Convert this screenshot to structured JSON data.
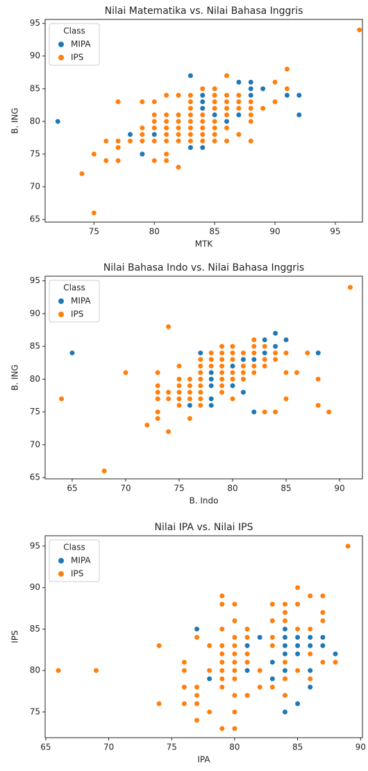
{
  "chart_data": [
    {
      "type": "scatter",
      "title": "Nilai Matematika vs. Nilai Bahasa Inggris",
      "x_label": "MTK",
      "y_label": "B. ING",
      "legend_title": "Class",
      "legend": "upper left",
      "grid": false,
      "xlim": [
        70.95,
        97.25
      ],
      "ylim": [
        64.6,
        95.6
      ],
      "xticks": [
        75,
        80,
        85,
        90,
        95
      ],
      "yticks": [
        65,
        70,
        75,
        80,
        85,
        90,
        95
      ],
      "series": [
        {
          "name": "MIPA",
          "color": "#1f77b4",
          "x": [
            72,
            78,
            79,
            80,
            83,
            83,
            84,
            84,
            84,
            85,
            86,
            87,
            87,
            88,
            88,
            88,
            89,
            91,
            92,
            92,
            84
          ],
          "values": [
            80,
            78,
            75,
            78,
            87,
            76,
            76,
            83,
            84,
            81,
            80,
            86,
            81,
            86,
            85,
            84,
            85,
            84,
            84,
            81,
            82
          ]
        },
        {
          "name": "IPS",
          "color": "#ff7f0e",
          "x": [
            74,
            75,
            75,
            76,
            76,
            77,
            77,
            77,
            77,
            78,
            79,
            79,
            79,
            79,
            80,
            80,
            80,
            80,
            80,
            80,
            81,
            81,
            81,
            81,
            81,
            81,
            81,
            81,
            82,
            82,
            82,
            82,
            82,
            82,
            82,
            83,
            83,
            83,
            83,
            83,
            83,
            83,
            83,
            84,
            84,
            84,
            84,
            84,
            84,
            85,
            85,
            85,
            85,
            85,
            85,
            85,
            85,
            86,
            86,
            86,
            86,
            86,
            86,
            86,
            87,
            87,
            87,
            87,
            88,
            88,
            88,
            88,
            88,
            89,
            90,
            90,
            91,
            91,
            97
          ],
          "values": [
            72,
            75,
            66,
            77,
            74,
            83,
            77,
            76,
            74,
            77,
            83,
            79,
            78,
            77,
            83,
            81,
            80,
            79,
            77,
            74,
            84,
            81,
            80,
            79,
            78,
            77,
            75,
            74,
            84,
            81,
            80,
            79,
            78,
            77,
            73,
            84,
            83,
            82,
            81,
            80,
            79,
            78,
            77,
            85,
            81,
            80,
            79,
            78,
            77,
            85,
            84,
            83,
            82,
            80,
            79,
            78,
            77,
            87,
            84,
            83,
            82,
            81,
            79,
            77,
            84,
            83,
            82,
            78,
            83,
            82,
            81,
            80,
            77,
            82,
            86,
            83,
            88,
            85,
            94
          ]
        }
      ]
    },
    {
      "type": "scatter",
      "title": "Nilai Bahasa Indo vs. Nilai Bahasa Inggris",
      "x_label": "B. Indo",
      "y_label": "B. ING",
      "legend_title": "Class",
      "legend": "upper left",
      "grid": false,
      "xlim": [
        62.47,
        92.14
      ],
      "ylim": [
        64.8,
        95.7
      ],
      "xticks": [
        65,
        70,
        75,
        80,
        85,
        90
      ],
      "yticks": [
        65,
        70,
        75,
        80,
        85,
        90,
        95
      ],
      "series": [
        {
          "name": "MIPA",
          "color": "#1f77b4",
          "x": [
            65,
            77,
            78,
            78,
            78,
            78,
            78,
            76,
            79,
            80,
            80,
            81,
            81,
            82,
            82,
            83,
            83,
            84,
            84,
            85,
            85,
            88
          ],
          "values": [
            84,
            84,
            81,
            80,
            79,
            77,
            76,
            76,
            82,
            82,
            79,
            83,
            78,
            83,
            75,
            86,
            84,
            87,
            85,
            86,
            84,
            84
          ]
        },
        {
          "name": "IPS",
          "color": "#ff7f0e",
          "x": [
            64,
            68,
            70,
            72,
            73,
            73,
            73,
            73,
            73,
            73,
            74,
            74,
            74,
            74,
            75,
            75,
            75,
            75,
            75,
            75,
            76,
            76,
            76,
            76,
            76,
            77,
            77,
            77,
            77,
            77,
            77,
            77,
            77,
            78,
            78,
            78,
            79,
            79,
            79,
            79,
            79,
            79,
            79,
            79,
            80,
            80,
            80,
            80,
            80,
            80,
            81,
            81,
            81,
            81,
            82,
            82,
            82,
            82,
            82,
            83,
            83,
            83,
            83,
            84,
            84,
            84,
            85,
            85,
            85,
            86,
            87,
            88,
            88,
            89,
            91
          ],
          "values": [
            77,
            66,
            81,
            73,
            81,
            79,
            78,
            77,
            75,
            74,
            88,
            78,
            77,
            72,
            82,
            80,
            79,
            78,
            77,
            76,
            80,
            79,
            78,
            77,
            74,
            83,
            82,
            81,
            80,
            79,
            78,
            77,
            76,
            84,
            83,
            82,
            85,
            84,
            83,
            82,
            81,
            80,
            79,
            78,
            85,
            84,
            83,
            81,
            80,
            77,
            84,
            82,
            81,
            80,
            86,
            85,
            84,
            82,
            81,
            85,
            83,
            82,
            75,
            84,
            83,
            75,
            84,
            81,
            77,
            81,
            84,
            80,
            76,
            75,
            94
          ]
        }
      ]
    },
    {
      "type": "scatter",
      "title": "Nilai IPA vs. Nilai IPS",
      "x_label": "IPA",
      "y_label": "IPS",
      "legend_title": "Class",
      "legend": "upper left",
      "grid": false,
      "xlim": [
        64.95,
        90.15
      ],
      "ylim": [
        71.9,
        96.25
      ],
      "xticks": [
        65,
        70,
        75,
        80,
        85,
        90
      ],
      "yticks": [
        75,
        80,
        85,
        90,
        95
      ],
      "series": [
        {
          "name": "MIPA",
          "color": "#1f77b4",
          "x": [
            77,
            78,
            80,
            81,
            81,
            82,
            83,
            83,
            84,
            84,
            84,
            84,
            84,
            84,
            85,
            85,
            85,
            85,
            86,
            86,
            86,
            86,
            87,
            87,
            88
          ],
          "values": [
            85,
            79,
            80,
            83,
            80,
            84,
            81,
            79,
            85,
            84,
            83,
            82,
            80,
            75,
            84,
            83,
            82,
            76,
            84,
            83,
            80,
            78,
            84,
            83,
            82
          ]
        },
        {
          "name": "IPS",
          "color": "#ff7f0e",
          "x": [
            66,
            69,
            74,
            74,
            76,
            76,
            76,
            76,
            77,
            77,
            77,
            77,
            77,
            78,
            78,
            78,
            79,
            79,
            79,
            79,
            79,
            79,
            79,
            79,
            79,
            79,
            80,
            80,
            80,
            80,
            80,
            80,
            80,
            80,
            80,
            80,
            80,
            81,
            81,
            81,
            81,
            81,
            82,
            82,
            83,
            83,
            83,
            83,
            83,
            84,
            84,
            84,
            84,
            84,
            84,
            85,
            85,
            85,
            85,
            86,
            86,
            86,
            86,
            87,
            87,
            87,
            87,
            88,
            89
          ],
          "values": [
            80,
            80,
            83,
            76,
            81,
            80,
            78,
            76,
            84,
            78,
            77,
            76,
            74,
            83,
            80,
            75,
            89,
            88,
            85,
            83,
            82,
            81,
            80,
            79,
            78,
            73,
            88,
            86,
            84,
            83,
            82,
            81,
            80,
            79,
            77,
            75,
            73,
            85,
            84,
            82,
            81,
            77,
            80,
            78,
            88,
            86,
            84,
            83,
            78,
            88,
            87,
            86,
            81,
            79,
            77,
            90,
            88,
            85,
            80,
            89,
            85,
            82,
            79,
            89,
            87,
            86,
            81,
            81,
            95
          ]
        }
      ]
    }
  ]
}
